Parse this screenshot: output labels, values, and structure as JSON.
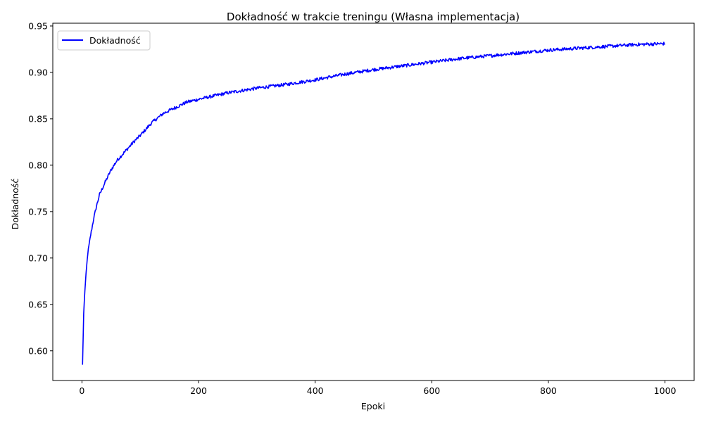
{
  "chart_data": {
    "type": "line",
    "title": "Dokładność w trakcie treningu (Własna implementacja)",
    "xlabel": "Epoki",
    "ylabel": "Dokładność",
    "xlim": [
      -50,
      1050
    ],
    "ylim": [
      0.568,
      0.953
    ],
    "xticks": [
      0,
      200,
      400,
      600,
      800,
      1000
    ],
    "xtick_labels": [
      "0",
      "200",
      "400",
      "600",
      "800",
      "1000"
    ],
    "yticks": [
      0.6,
      0.65,
      0.7,
      0.75,
      0.8,
      0.85,
      0.9,
      0.95
    ],
    "ytick_labels": [
      "0.60",
      "0.65",
      "0.70",
      "0.75",
      "0.80",
      "0.85",
      "0.90",
      "0.95"
    ],
    "grid": false,
    "legend_position": "top-left",
    "series": [
      {
        "name": "Dokładność",
        "color": "#0000ff",
        "x": [
          1,
          3,
          5,
          8,
          10,
          15,
          20,
          25,
          30,
          40,
          50,
          60,
          70,
          80,
          90,
          100,
          110,
          120,
          140,
          160,
          180,
          200,
          250,
          300,
          350,
          400,
          450,
          500,
          550,
          600,
          650,
          700,
          750,
          800,
          850,
          900,
          950,
          1000
        ],
        "y": [
          0.585,
          0.64,
          0.665,
          0.69,
          0.705,
          0.725,
          0.742,
          0.756,
          0.768,
          0.782,
          0.795,
          0.805,
          0.812,
          0.819,
          0.826,
          0.832,
          0.839,
          0.846,
          0.856,
          0.862,
          0.868,
          0.871,
          0.878,
          0.883,
          0.887,
          0.892,
          0.898,
          0.903,
          0.907,
          0.911,
          0.915,
          0.918,
          0.921,
          0.924,
          0.926,
          0.928,
          0.93,
          0.931
        ]
      }
    ]
  }
}
